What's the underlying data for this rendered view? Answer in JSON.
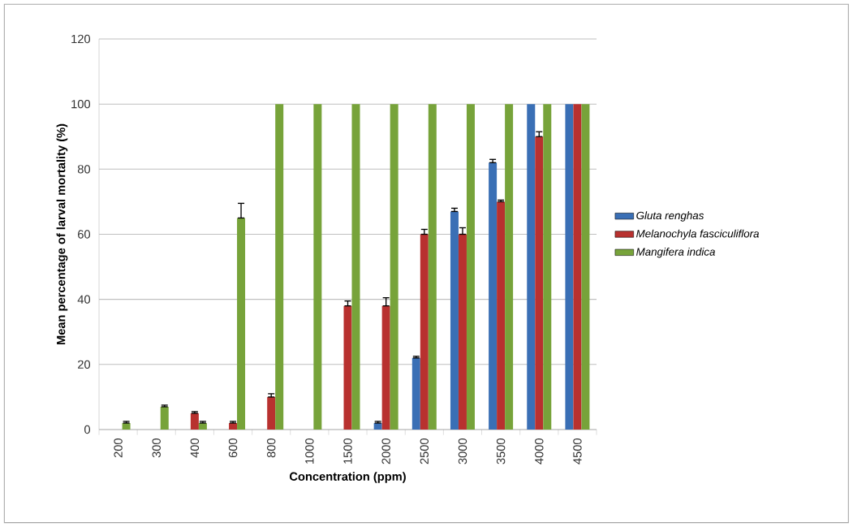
{
  "chart_data": {
    "type": "bar",
    "xlabel": "Concentration (ppm)",
    "ylabel": "Mean percentage of larval mortality (%)",
    "categories": [
      "200",
      "300",
      "400",
      "600",
      "800",
      "1000",
      "1500",
      "2000",
      "2500",
      "3000",
      "3500",
      "4000",
      "4500"
    ],
    "series": [
      {
        "name": "Gluta renghas",
        "color": "#3a6fb5",
        "values": [
          0,
          0,
          0,
          0,
          0,
          0,
          0,
          2,
          22,
          67,
          82,
          100,
          100
        ],
        "errors": [
          null,
          null,
          null,
          null,
          null,
          null,
          null,
          [
            2,
            2.5
          ],
          [
            22,
            22.5
          ],
          [
            67,
            68
          ],
          [
            82,
            83
          ],
          null,
          null
        ]
      },
      {
        "name": "Melanochyla fasciculiflora",
        "color": "#b8312f",
        "values": [
          0,
          0,
          5,
          2,
          10,
          0,
          38,
          38,
          60,
          60,
          70,
          90,
          100
        ],
        "errors": [
          null,
          null,
          [
            5,
            5.5
          ],
          [
            2,
            2.5
          ],
          [
            10,
            11
          ],
          null,
          [
            38,
            39.5
          ],
          [
            38,
            40.5
          ],
          [
            60,
            61.5
          ],
          [
            60,
            62
          ],
          [
            70,
            70.5
          ],
          [
            90,
            91.5
          ],
          null
        ]
      },
      {
        "name": "Mangifera indica",
        "color": "#77a33a",
        "values": [
          2,
          7,
          2,
          65,
          100,
          100,
          100,
          100,
          100,
          100,
          100,
          100,
          100
        ],
        "errors": [
          [
            2,
            2.5
          ],
          [
            7,
            7.5
          ],
          [
            2,
            2.5
          ],
          [
            65,
            69.5
          ],
          null,
          null,
          null,
          null,
          null,
          null,
          null,
          null,
          null
        ]
      }
    ],
    "ylim": [
      0,
      120
    ],
    "yticks": [
      0,
      20,
      40,
      60,
      80,
      100,
      120
    ],
    "grid": "y",
    "legend": "right"
  }
}
